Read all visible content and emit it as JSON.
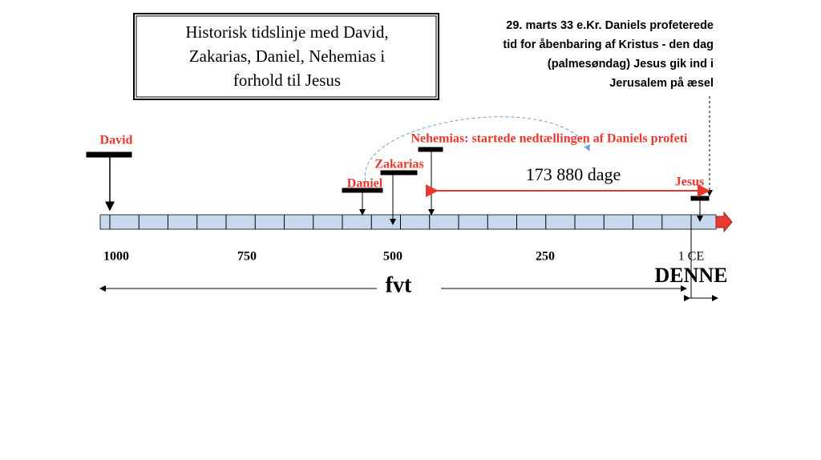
{
  "title": {
    "lines": [
      "Historisk tidslinje med David,",
      "Zakarias, Daniel, Nehemias i",
      "forhold til Jesus"
    ]
  },
  "annotation": {
    "lines": [
      "29. marts 33 e.Kr.  Daniels profeterede",
      "tid for åbenbaring af Kristus - den dag",
      "(palmesøndag) Jesus gik ind i",
      "Jerusalem på æsel"
    ]
  },
  "events": [
    {
      "label": "David"
    },
    {
      "label": "Daniel"
    },
    {
      "label": "Zakarias"
    },
    {
      "label": "Nehemias: startede nedtællingen af Daniels profeti"
    },
    {
      "label": "Jesus"
    }
  ],
  "span_label": "173 880 dage",
  "axis_labels": [
    "1000",
    "750",
    "500",
    "250",
    "1 CE"
  ],
  "eras": [
    "fvt",
    "DENNE"
  ]
}
